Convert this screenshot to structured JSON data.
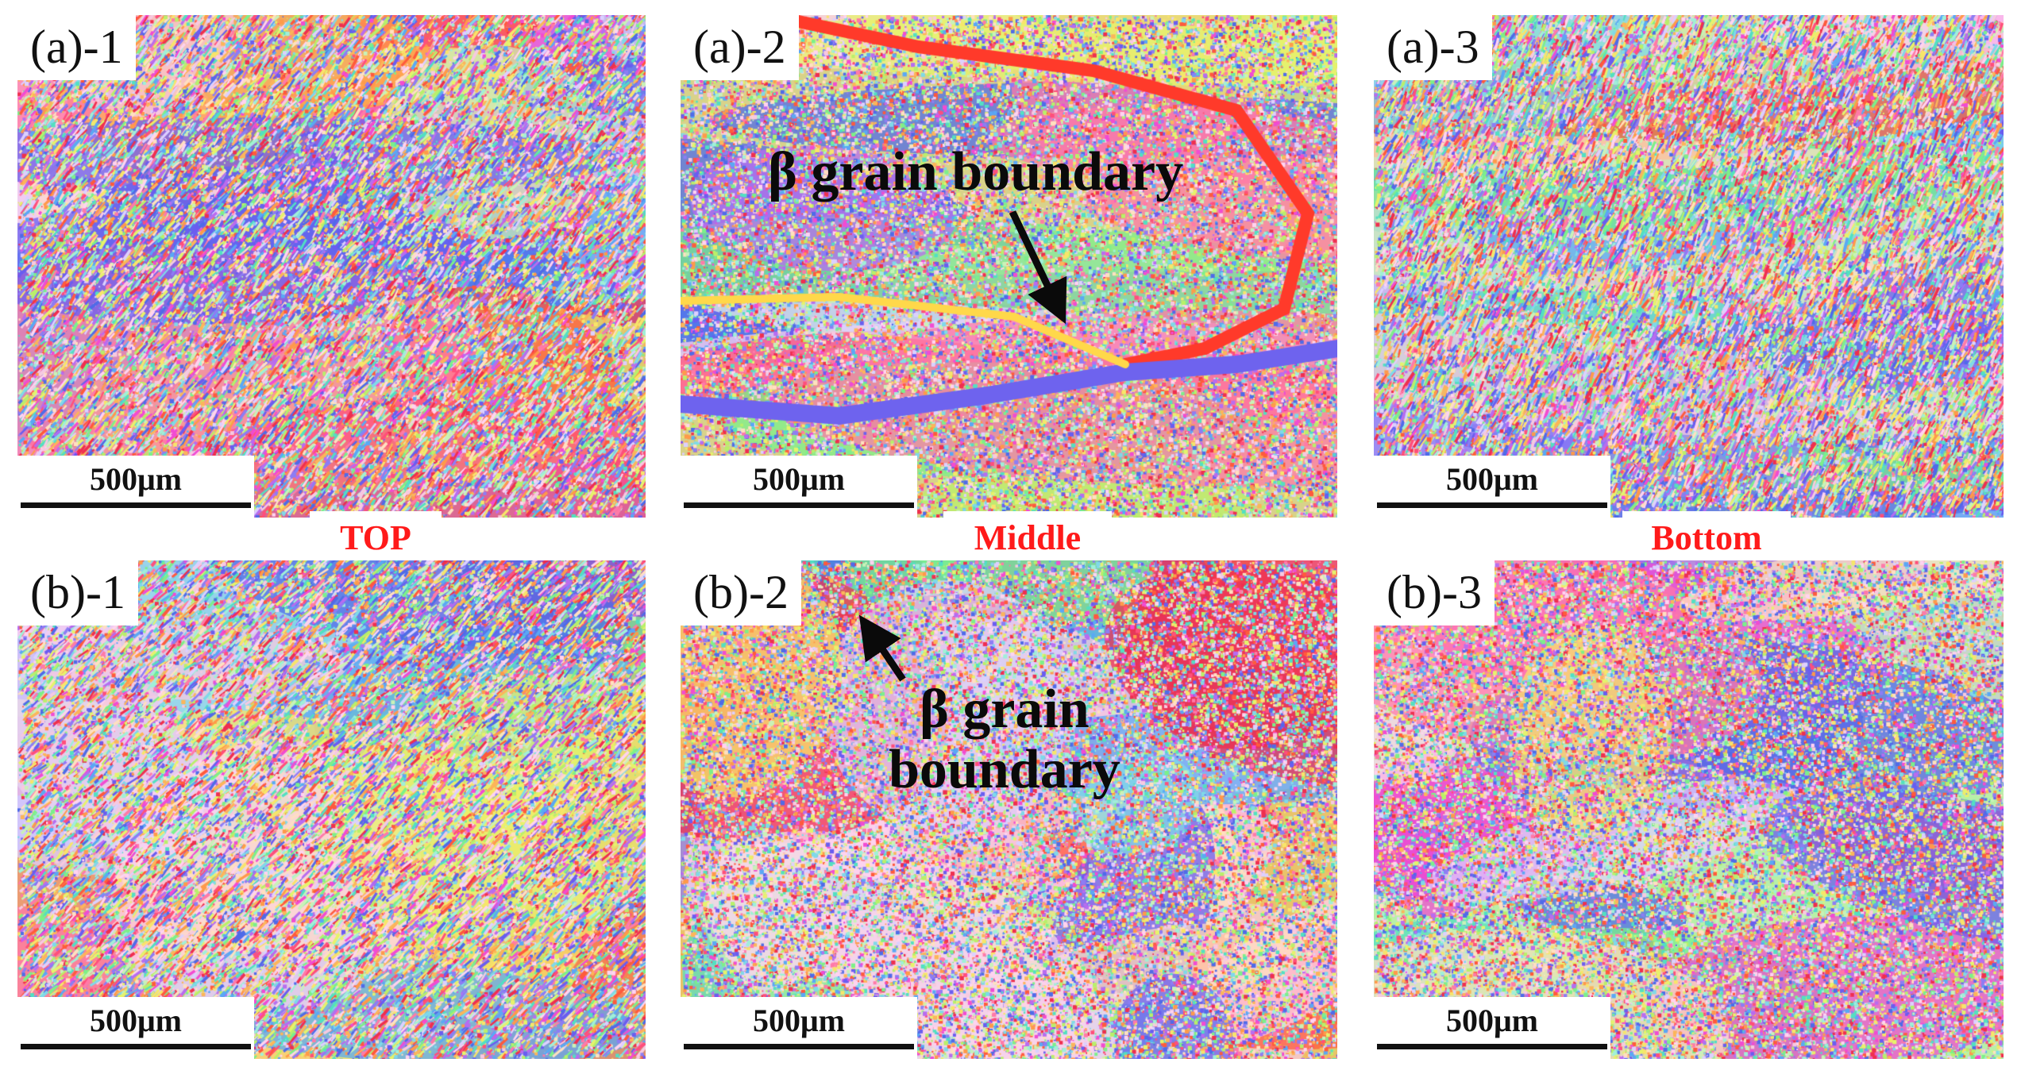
{
  "panels": {
    "a1": {
      "tag": "(a)-1",
      "scale": "500μm"
    },
    "a2": {
      "tag": "(a)-2",
      "scale": "500μm"
    },
    "a3": {
      "tag": "(a)-3",
      "scale": "500μm"
    },
    "b1": {
      "tag": "(b)-1",
      "scale": "500μm"
    },
    "b2": {
      "tag": "(b)-2",
      "scale": "500μm"
    },
    "b3": {
      "tag": "(b)-3",
      "scale": "500μm"
    }
  },
  "positions": {
    "top": "TOP",
    "middle": "Middle",
    "bottom": "Bottom"
  },
  "annotations": {
    "a2_line1": "β grain boundary",
    "b2_line1": "β grain",
    "b2_line2": "boundary"
  },
  "colors": {
    "position_label": "#ff1a1a",
    "text": "#111111",
    "arrow": "#0a0a0a"
  }
}
